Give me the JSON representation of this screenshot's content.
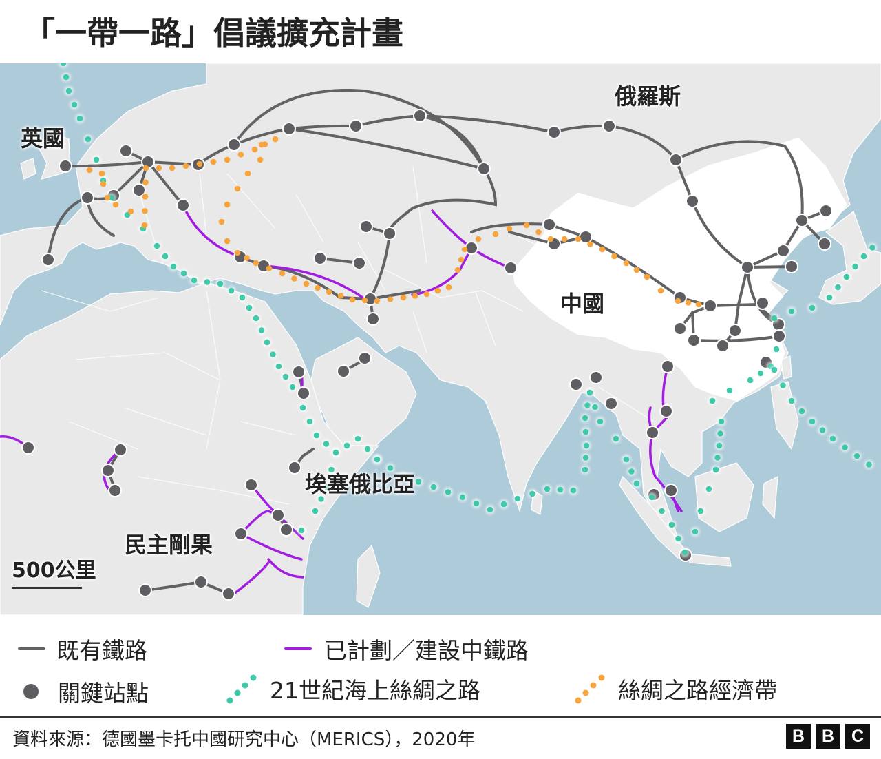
{
  "title": "「一帶一路」倡議擴充計畫",
  "map": {
    "labels": {
      "uk": "英國",
      "russia": "俄羅斯",
      "china": "中國",
      "ethiopia": "埃塞俄比亞",
      "drc": "民主剛果"
    },
    "scale": "500公里"
  },
  "legend": {
    "existing_rail": "既有鐵路",
    "planned_rail": "已計劃／建設中鐵路",
    "key_stations": "關鍵站點",
    "maritime_road": "21世紀海上絲綢之路",
    "belt": "絲綢之路經濟帶"
  },
  "colors": {
    "sea": "#aecbd9",
    "land": "#e9e9ea",
    "china": "#ffffff",
    "existing_rail": "#626265",
    "planned_rail": "#a11ee0",
    "maritime_road": "#3ec9a8",
    "belt": "#f5a53c"
  },
  "source": "資料來源：德國墨卡托中國研究中心（MERICS），2020年",
  "logo": [
    "B",
    "B",
    "C"
  ]
}
